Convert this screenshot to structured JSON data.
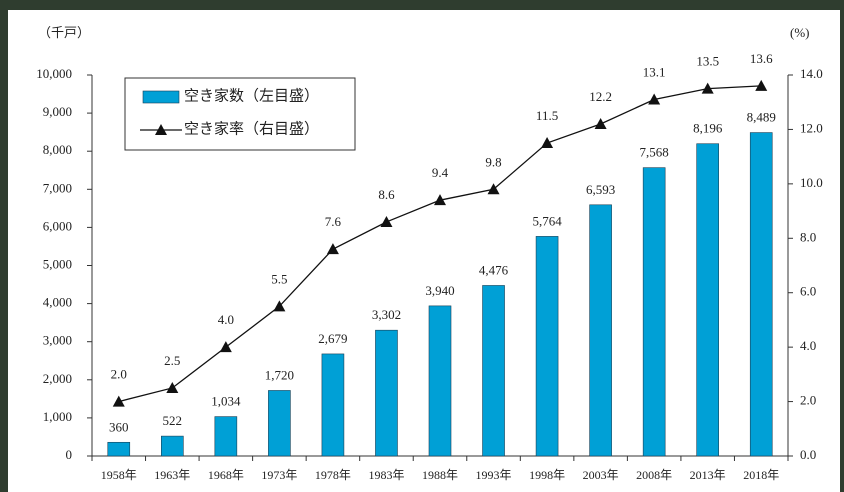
{
  "chart_data": {
    "type": "bar-line",
    "y_unit": "（千戸）",
    "y2_unit": "(%)",
    "categories": [
      "1958年",
      "1963年",
      "1968年",
      "1973年",
      "1978年",
      "1983年",
      "1988年",
      "1993年",
      "1998年",
      "2003年",
      "2008年",
      "2013年",
      "2018年"
    ],
    "series": [
      {
        "name": "空き家数（左目盛）",
        "type": "bar",
        "color": "#00a0d6",
        "values": [
          360,
          522,
          1034,
          1720,
          2679,
          3302,
          3940,
          4476,
          5764,
          6593,
          7568,
          8196,
          8489
        ],
        "value_labels": [
          "360",
          "522",
          "1,034",
          "1,720",
          "2,679",
          "3,302",
          "3,940",
          "4,476",
          "5,764",
          "6,593",
          "7,568",
          "8,196",
          "8,489"
        ]
      },
      {
        "name": "空き家率（右目盛）",
        "type": "line",
        "color": "#111111",
        "axis": "y2",
        "values": [
          2.0,
          2.5,
          4.0,
          5.5,
          7.6,
          8.6,
          9.4,
          9.8,
          11.5,
          12.2,
          13.1,
          13.5,
          13.6
        ],
        "value_labels": [
          "2.0",
          "2.5",
          "4.0",
          "5.5",
          "7.6",
          "8.6",
          "9.4",
          "9.8",
          "11.5",
          "12.2",
          "13.1",
          "13.5",
          "13.6"
        ]
      }
    ],
    "ylim": [
      0,
      10000
    ],
    "yticks": [
      0,
      {
        "value": 1000,
        "label": "1,000"
      },
      {
        "value": 2000,
        "label": "2,000"
      },
      {
        "value": 3000,
        "label": "3,000"
      },
      {
        "value": 4000,
        "label": "4,000"
      },
      {
        "value": 5000,
        "label": "5,000"
      },
      {
        "value": 6000,
        "label": "6,000"
      },
      {
        "value": 7000,
        "label": "7,000"
      },
      {
        "value": 8000,
        "label": "8,000"
      },
      {
        "value": 9000,
        "label": "9,000"
      },
      {
        "value": 10000,
        "label": "10,000"
      }
    ],
    "y2lim": [
      0,
      14
    ],
    "y2ticks": [
      {
        "value": 0,
        "label": "0.0"
      },
      {
        "value": 2,
        "label": "2.0"
      },
      {
        "value": 4,
        "label": "4.0"
      },
      {
        "value": 6,
        "label": "6.0"
      },
      {
        "value": 8,
        "label": "8.0"
      },
      {
        "value": 10,
        "label": "10.0"
      },
      {
        "value": 12,
        "label": "12.0"
      },
      {
        "value": 14,
        "label": "14.0"
      }
    ],
    "grid": false
  }
}
